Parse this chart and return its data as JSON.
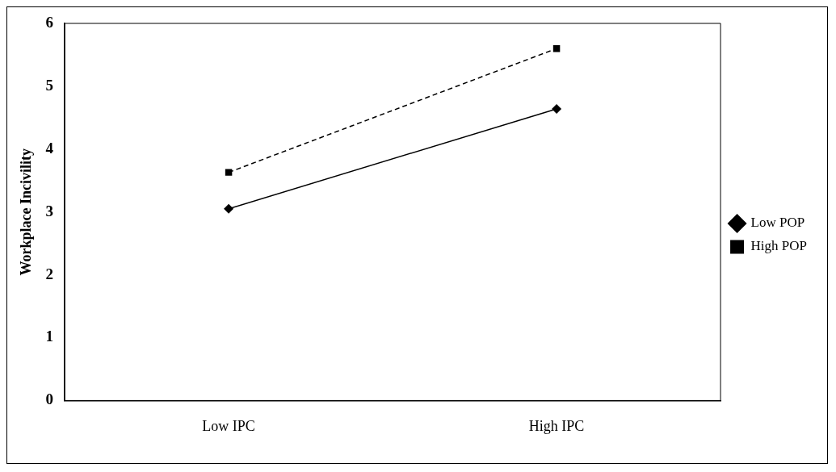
{
  "chart_data": {
    "type": "line",
    "ylabel": "Workplace Incivility",
    "categories": [
      "Low IPC",
      "High IPC"
    ],
    "series": [
      {
        "name": "Low POP",
        "color": "#000000",
        "values": [
          3.05,
          4.64
        ],
        "marker": "diamond",
        "line_style": "solid"
      },
      {
        "name": "High POP",
        "color": "#000000",
        "values": [
          3.63,
          5.6
        ],
        "marker": "square",
        "line_style": "dashed"
      }
    ],
    "ylim": [
      0,
      6
    ],
    "yticks": [
      0,
      1,
      2,
      3,
      4,
      5,
      6
    ],
    "grid": false,
    "legend": "right"
  }
}
